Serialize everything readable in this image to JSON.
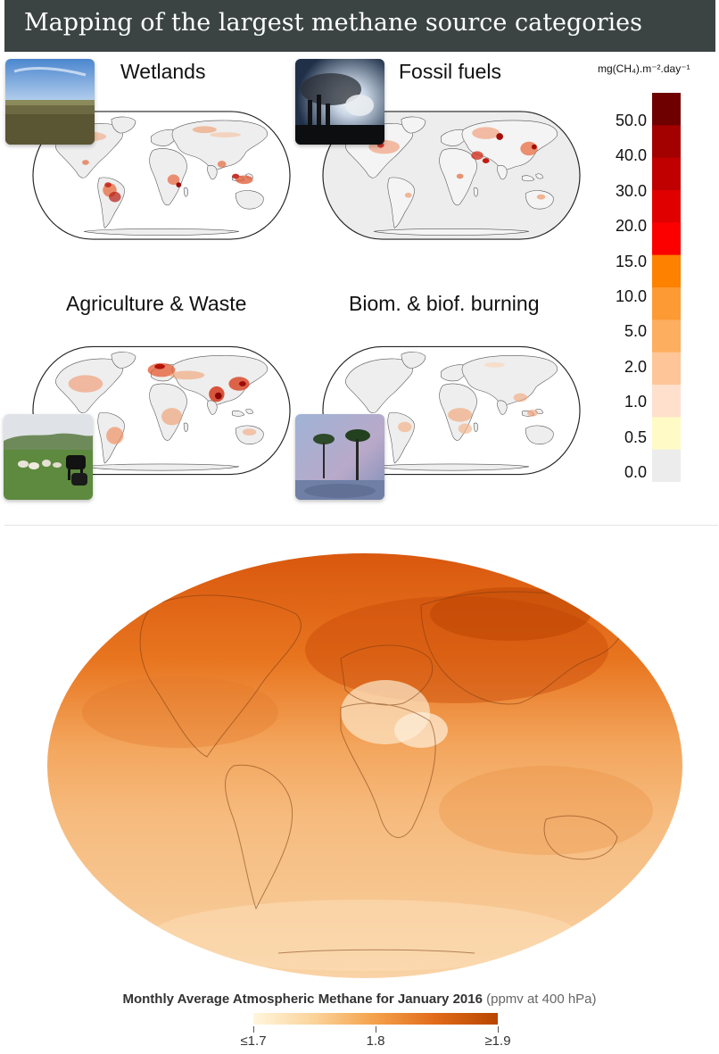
{
  "header": {
    "title": "Mapping of the largest methane source categories"
  },
  "panels": [
    {
      "title": "Wetlands",
      "photo_icon": "wetland-landscape-photo"
    },
    {
      "title": "Fossil fuels",
      "photo_icon": "power-plant-smokestacks-photo"
    },
    {
      "title": "Agriculture & Waste",
      "photo_icon": "grazing-cattle-photo"
    },
    {
      "title": "Biom. & biof. burning",
      "photo_icon": "forest-fire-smoke-photo"
    }
  ],
  "legend": {
    "unit_label": "mg(CH₄).m⁻².day⁻¹",
    "ticks": [
      "50.0",
      "40.0",
      "30.0",
      "20.0",
      "15.0",
      "10.0",
      "5.0",
      "2.0",
      "1.0",
      "0.5",
      "0.0"
    ],
    "colors": [
      "#6e0000",
      "#a30000",
      "#c00000",
      "#e00000",
      "#fc0000",
      "#fe8100",
      "#fe9a33",
      "#feae5f",
      "#fec698",
      "#fee0cd",
      "#fffac6",
      "#ececec"
    ]
  },
  "methane_map": {
    "caption_bold": "Monthly Average Atmospheric Methane for January 2016",
    "caption_unit": "(ppmv at 400 hPa)",
    "scale_labels": [
      "≤1.7",
      "1.8",
      "≥1.9"
    ],
    "scale_values": [
      1.7,
      1.8,
      1.9
    ]
  },
  "colors": {
    "banner": "#3b4443",
    "land": "#eeeeee",
    "ocean": "#ffffff"
  }
}
